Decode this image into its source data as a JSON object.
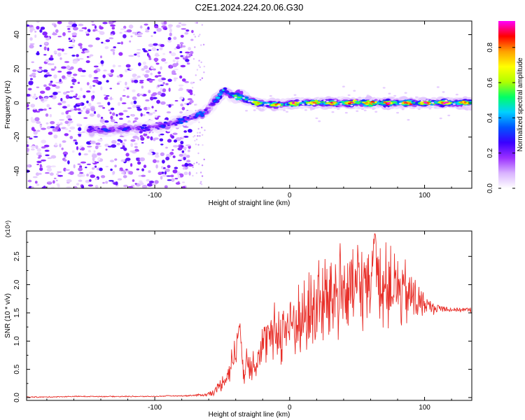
{
  "title": "C2E1.2024.224.20.06.G30",
  "colorbar": {
    "label": "Normalized spectral amplitude",
    "ticks": [
      "0.0",
      "0.2",
      "0.4",
      "0.6",
      "0.8"
    ],
    "tick_values": [
      0.0,
      0.2,
      0.4,
      0.6,
      0.8
    ],
    "range": [
      0.0,
      0.95
    ],
    "colors": [
      "#ffffff",
      "#d9b3ff",
      "#9b30ff",
      "#3a00ff",
      "#0055ff",
      "#00d0ff",
      "#00ff66",
      "#b0ff00",
      "#ffff00",
      "#ffa000",
      "#ff0000",
      "#ff00ff"
    ]
  },
  "chart_data": [
    {
      "type": "heatmap",
      "title": "C2E1.2024.224.20.06.G30",
      "xlabel": "Height of straight line (km)",
      "ylabel": "Frequency (Hz)",
      "xlim": [
        -195,
        135
      ],
      "ylim": [
        -50,
        48
      ],
      "x_ticks": [
        -100,
        0,
        100
      ],
      "x_tick_labels": [
        "-100",
        "0",
        "100"
      ],
      "y_ticks": [
        -40,
        -20,
        0,
        20,
        40
      ],
      "y_tick_labels": [
        "-40",
        "-20",
        "0",
        "20",
        "40"
      ],
      "colorbar_label": "Normalized spectral amplitude",
      "ridge": [
        {
          "x": -148,
          "y": -16,
          "amp": 0.35
        },
        {
          "x": -135,
          "y": -16,
          "amp": 0.35
        },
        {
          "x": -125,
          "y": -15,
          "amp": 0.33
        },
        {
          "x": -112,
          "y": -15,
          "amp": 0.33
        },
        {
          "x": -100,
          "y": -14,
          "amp": 0.32
        },
        {
          "x": -90,
          "y": -13,
          "amp": 0.33
        },
        {
          "x": -80,
          "y": -10,
          "amp": 0.35
        },
        {
          "x": -70,
          "y": -8,
          "amp": 0.4
        },
        {
          "x": -62,
          "y": -5,
          "amp": 0.42
        },
        {
          "x": -55,
          "y": 2,
          "amp": 0.45
        },
        {
          "x": -48,
          "y": 7,
          "amp": 0.5
        },
        {
          "x": -42,
          "y": 4,
          "amp": 0.55
        },
        {
          "x": -35,
          "y": 3,
          "amp": 0.7
        },
        {
          "x": -25,
          "y": 0,
          "amp": 0.78
        },
        {
          "x": -10,
          "y": -1,
          "amp": 0.82
        },
        {
          "x": 10,
          "y": 0,
          "amp": 0.85
        },
        {
          "x": 30,
          "y": 0,
          "amp": 0.88
        },
        {
          "x": 50,
          "y": 0,
          "amp": 0.9
        },
        {
          "x": 75,
          "y": 0,
          "amp": 0.92
        },
        {
          "x": 100,
          "y": 0,
          "amp": 0.93
        },
        {
          "x": 120,
          "y": 0,
          "amp": 0.9
        },
        {
          "x": 135,
          "y": 0,
          "amp": 0.88
        }
      ]
    },
    {
      "type": "line",
      "xlabel": "Height of straight line (km)",
      "ylabel": "SNR (10 * v/v)",
      "y_scale_label": "(x10⁴)",
      "xlim": [
        -195,
        135
      ],
      "ylim": [
        -0.05,
        2.95
      ],
      "x_ticks": [
        -100,
        0,
        100
      ],
      "x_tick_labels": [
        "-100",
        "0",
        "100"
      ],
      "y_ticks": [
        0.0,
        0.5,
        1.0,
        1.5,
        2.0,
        2.5
      ],
      "y_tick_labels": [
        "0.0",
        "0.5",
        "1.0",
        "1.5",
        "2.0",
        "2.5"
      ],
      "series": [
        {
          "color": "#e8302a",
          "x": [
            -195,
            -180,
            -160,
            -140,
            -120,
            -100,
            -90,
            -80,
            -70,
            -62,
            -55,
            -50,
            -45,
            -40,
            -37,
            -34,
            -30,
            -25,
            -20,
            -15,
            -10,
            -5,
            0,
            5,
            10,
            15,
            20,
            25,
            30,
            35,
            40,
            45,
            50,
            55,
            60,
            63,
            65,
            70,
            75,
            80,
            85,
            90,
            95,
            100,
            105,
            110,
            115,
            120,
            125,
            130,
            135
          ],
          "y": [
            0.01,
            0.01,
            0.02,
            0.02,
            0.02,
            0.02,
            0.03,
            0.03,
            0.04,
            0.05,
            0.12,
            0.25,
            0.45,
            0.85,
            1.3,
            0.5,
            0.6,
            0.7,
            0.9,
            1.05,
            1.15,
            1.2,
            1.3,
            1.35,
            1.4,
            1.5,
            1.6,
            1.7,
            1.8,
            1.85,
            1.9,
            1.9,
            1.95,
            2.0,
            2.05,
            2.9,
            2.1,
            2.0,
            1.95,
            1.9,
            1.85,
            1.8,
            1.7,
            1.65,
            1.6,
            1.58,
            1.57,
            1.56,
            1.56,
            1.55,
            1.55
          ],
          "spread": [
            0.01,
            0.01,
            0.01,
            0.01,
            0.01,
            0.01,
            0.01,
            0.01,
            0.02,
            0.03,
            0.08,
            0.15,
            0.25,
            0.35,
            0.1,
            0.3,
            0.35,
            0.4,
            0.45,
            0.5,
            0.6,
            0.65,
            0.7,
            0.75,
            0.8,
            0.8,
            0.85,
            0.85,
            0.9,
            0.95,
            0.9,
            0.9,
            0.9,
            0.9,
            0.9,
            0.0,
            0.8,
            0.8,
            0.75,
            0.7,
            0.65,
            0.55,
            0.35,
            0.2,
            0.15,
            0.1,
            0.06,
            0.05,
            0.05,
            0.05,
            0.05
          ]
        }
      ]
    }
  ]
}
